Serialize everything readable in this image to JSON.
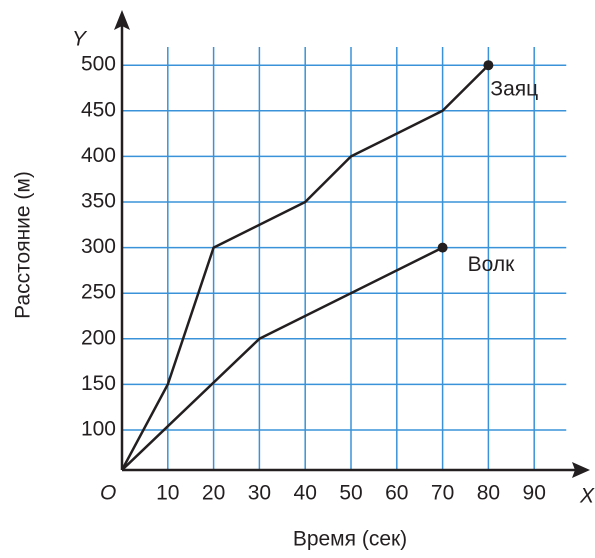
{
  "chart_data": {
    "type": "line",
    "x_label": "Время (сек)",
    "y_label": "Расстояние (м)",
    "x_axis_name": "X",
    "y_axis_name": "Y",
    "origin_label": "O",
    "x": [
      0,
      10,
      20,
      30,
      40,
      50,
      60,
      70,
      80
    ],
    "series": [
      {
        "name": "Заяц",
        "color": "#231f20",
        "values": [
          0,
          150,
          300,
          null,
          350,
          400,
          null,
          450,
          500
        ]
      },
      {
        "name": "Волк",
        "color": "#231f20",
        "values": [
          0,
          null,
          null,
          200,
          null,
          null,
          null,
          300,
          null
        ]
      }
    ],
    "xlim": [
      0,
      97
    ],
    "ylim": [
      0,
      520
    ],
    "xticks": [
      10,
      20,
      30,
      40,
      50,
      60,
      70,
      80,
      90
    ],
    "yticks": [
      100,
      150,
      200,
      250,
      300,
      350,
      400,
      450,
      500
    ],
    "grid": true,
    "grid_color": "#3a93d8"
  }
}
